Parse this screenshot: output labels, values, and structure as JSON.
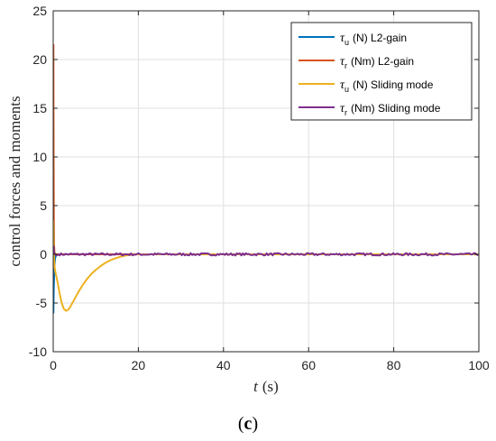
{
  "chart_data": {
    "type": "line",
    "xlabel_italic": "t",
    "xlabel_unit": "(s)",
    "ylabel": "control forces and moments",
    "caption_open": "(",
    "caption_letter": "c",
    "caption_close": ")",
    "xlim": [
      0,
      100
    ],
    "ylim": [
      -10,
      25
    ],
    "xticks": [
      "0",
      "20",
      "40",
      "60",
      "80",
      "100"
    ],
    "yticks": [
      "-10",
      "-5",
      "0",
      "5",
      "10",
      "15",
      "20",
      "25"
    ],
    "grid": true,
    "legend_position": "top-right",
    "series": [
      {
        "symbol": "τ",
        "sub": "u",
        "rest": "(N) L2-gain",
        "color": "#0072BD",
        "x": [
          0,
          0.05,
          0.1,
          0.15,
          0.2,
          0.25,
          0.3,
          0.4,
          0.5,
          0.7,
          1,
          2,
          5,
          20,
          100
        ],
        "y": [
          0,
          -6.0,
          -4.5,
          -3.2,
          -2.5,
          -1.8,
          -1.2,
          -0.6,
          -0.3,
          -0.1,
          0,
          0,
          0,
          0,
          0
        ]
      },
      {
        "symbol": "τ",
        "sub": "r",
        "rest": "(Nm) L2-gain",
        "color": "#D95319",
        "x": [
          0,
          0.05,
          0.1,
          0.15,
          0.2,
          0.3,
          0.5,
          1,
          5,
          100
        ],
        "y": [
          0,
          21.5,
          10,
          3.5,
          1.0,
          0.2,
          0,
          0,
          0,
          0
        ]
      },
      {
        "symbol": "τ",
        "sub": "u",
        "rest": "(N) Sliding mode",
        "color": "#EDB120",
        "x": [
          0,
          0.1,
          0.3,
          0.5,
          1,
          1.5,
          2,
          2.5,
          3,
          3.5,
          4,
          5,
          6,
          7,
          8,
          9,
          10,
          11,
          12,
          13,
          14,
          15,
          16,
          17,
          18,
          19,
          20,
          25,
          100
        ],
        "y": [
          3.5,
          0.5,
          -1.2,
          -1.8,
          -2.8,
          -4.0,
          -5.0,
          -5.6,
          -5.8,
          -5.7,
          -5.4,
          -4.6,
          -3.8,
          -3.1,
          -2.5,
          -2.0,
          -1.6,
          -1.25,
          -0.95,
          -0.7,
          -0.5,
          -0.35,
          -0.22,
          -0.13,
          -0.07,
          -0.03,
          0,
          0,
          0
        ]
      },
      {
        "symbol": "τ",
        "sub": "r",
        "rest": "(Nm) Sliding mode",
        "color": "#7E2F8E",
        "x": [
          0,
          0.1,
          0.2,
          0.4,
          0.8,
          1.5,
          100
        ],
        "y": [
          0,
          0.8,
          0.2,
          0.0,
          -0.1,
          0.0,
          0.0
        ],
        "noise": 0.12
      }
    ]
  }
}
